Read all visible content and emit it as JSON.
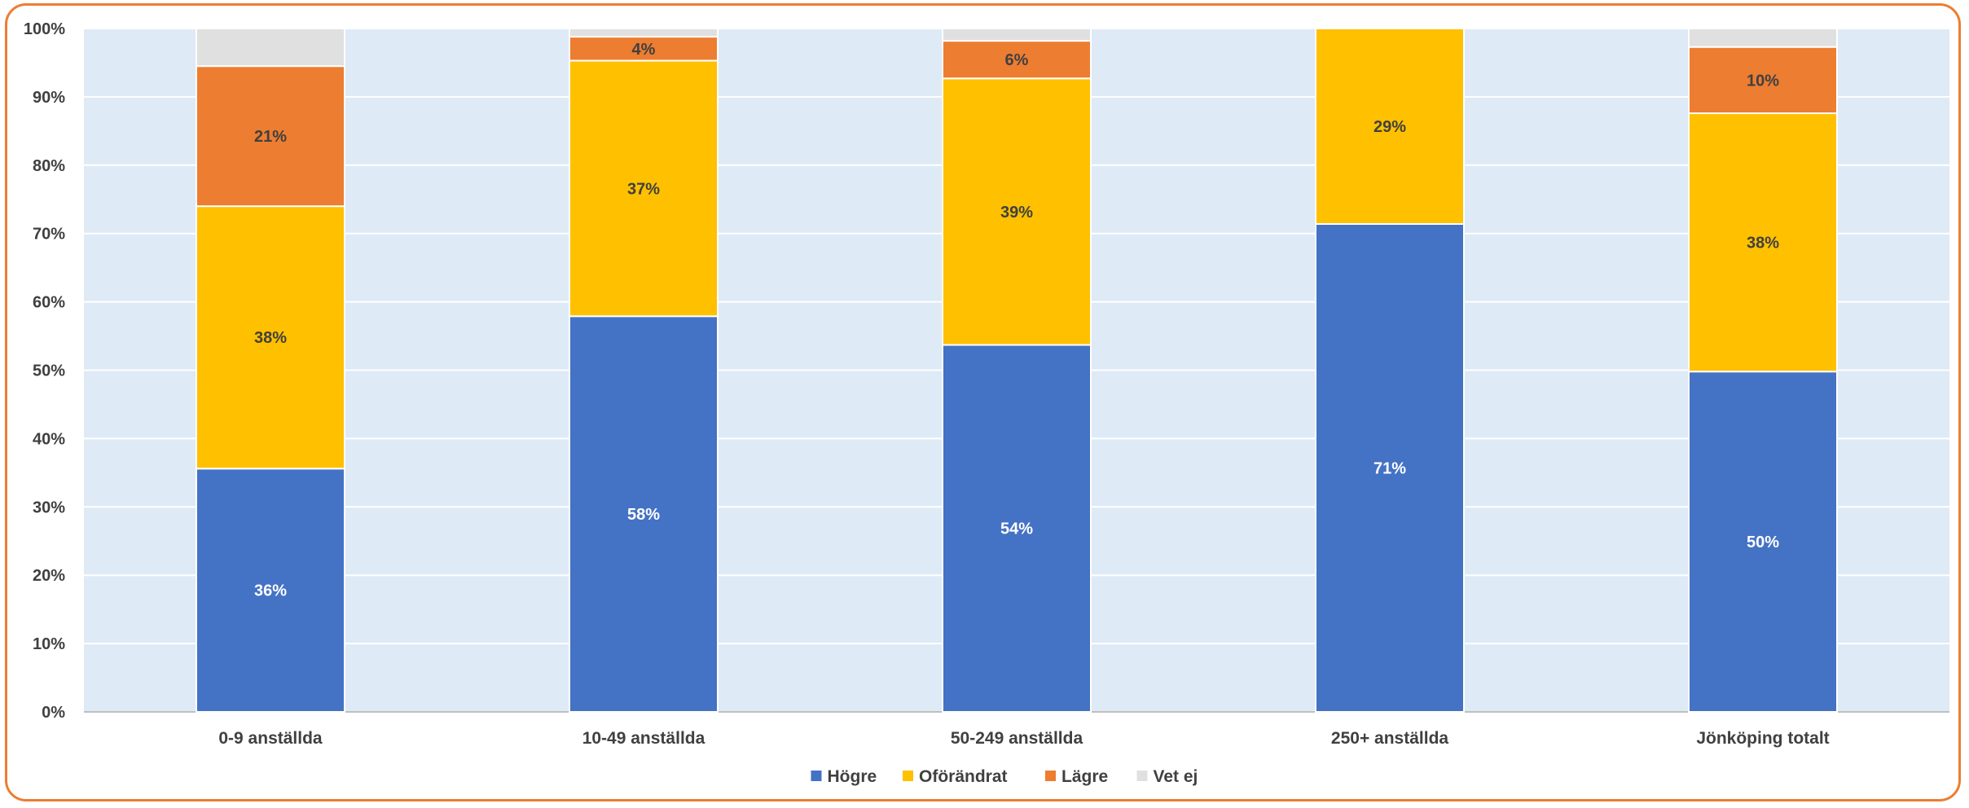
{
  "chart_data": {
    "type": "bar",
    "stacked": true,
    "categories": [
      "0-9 anställda",
      "10-49 anställda",
      "50-249 anställda",
      "250+ anställda",
      "Jönköping totalt"
    ],
    "series": [
      {
        "name": "Högre",
        "values": [
          35.6,
          57.9,
          53.7,
          71.4,
          49.8
        ],
        "labels": [
          "36%",
          "58%",
          "54%",
          "71%",
          "50%"
        ],
        "color": "#4472C4",
        "label_color": "#ffffff"
      },
      {
        "name": "Oförändrat",
        "values": [
          38.4,
          37.4,
          39.0,
          28.6,
          37.8
        ],
        "labels": [
          "38%",
          "37%",
          "39%",
          "29%",
          "38%"
        ],
        "color": "#FFC000",
        "label_color": "#404040"
      },
      {
        "name": "Lägre",
        "values": [
          20.5,
          3.5,
          5.5,
          0,
          9.7
        ],
        "labels": [
          "21%",
          "4%",
          "6%",
          "",
          "10%"
        ],
        "color": "#ED7D31",
        "label_color": "#404040"
      },
      {
        "name": "Vet ej",
        "values": [
          5.5,
          1.2,
          1.8,
          0,
          2.7
        ],
        "labels": [
          "",
          "",
          "",
          "",
          ""
        ],
        "color": "#E0E0E0",
        "label_color": "#404040"
      }
    ],
    "y_ticks": [
      "0%",
      "10%",
      "20%",
      "30%",
      "40%",
      "50%",
      "60%",
      "70%",
      "80%",
      "90%",
      "100%"
    ],
    "ylim": [
      0,
      100
    ],
    "grid": true,
    "legend_position": "bottom",
    "plot_background": "#DEEAF6",
    "border_color": "#ED7D31"
  }
}
